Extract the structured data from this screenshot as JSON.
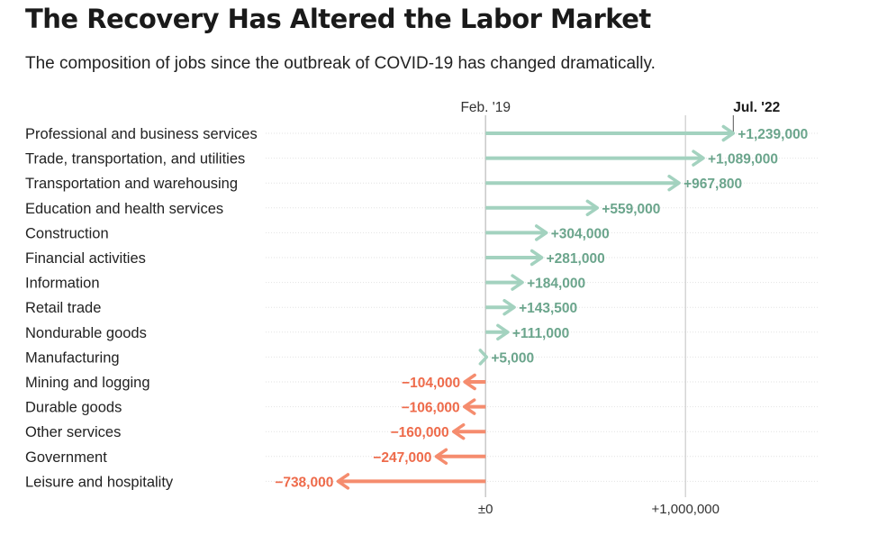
{
  "title": "The Recovery Has Altered the Labor Market",
  "subtitle": "The composition of jobs since the outbreak of COVID-19 has changed dramatically.",
  "colors": {
    "positive": "#a3d2bf",
    "positive_text": "#6ba58c",
    "negative": "#f58c6e",
    "negative_text": "#ee6b4b",
    "grid": "#d6d6d6"
  },
  "chart_data": {
    "type": "bar",
    "subtype": "diverging-arrow",
    "title": "The Recovery Has Altered the Labor Market",
    "subtitle": "The composition of jobs since the outbreak of COVID-19 has changed dramatically.",
    "start_label": "Feb. '19",
    "end_label": "Jul. '22",
    "end_marker_value": 1239000,
    "x_ticks": [
      0,
      1000000
    ],
    "x_tick_labels": [
      "±0",
      "+1,000,000"
    ],
    "xlim": [
      -1100000,
      1670000
    ],
    "categories": [
      "Professional and business services",
      "Trade, transportation, and utilities",
      "Transportation and warehousing",
      "Education and health services",
      "Construction",
      "Financial activities",
      "Information",
      "Retail trade",
      "Nondurable goods",
      "Manufacturing",
      "Mining and logging",
      "Durable goods",
      "Other services",
      "Government",
      "Leisure and hospitality"
    ],
    "values": [
      1239000,
      1089000,
      967800,
      559000,
      304000,
      281000,
      184000,
      143500,
      111000,
      5000,
      -104000,
      -106000,
      -160000,
      -247000,
      -738000
    ],
    "value_labels": [
      "+1,239,000",
      "+1,089,000",
      "+967,800",
      "+559,000",
      "+304,000",
      "+281,000",
      "+184,000",
      "+143,500",
      "+111,000",
      "+5,000",
      "−104,000",
      "−106,000",
      "−160,000",
      "−247,000",
      "−738,000"
    ]
  }
}
